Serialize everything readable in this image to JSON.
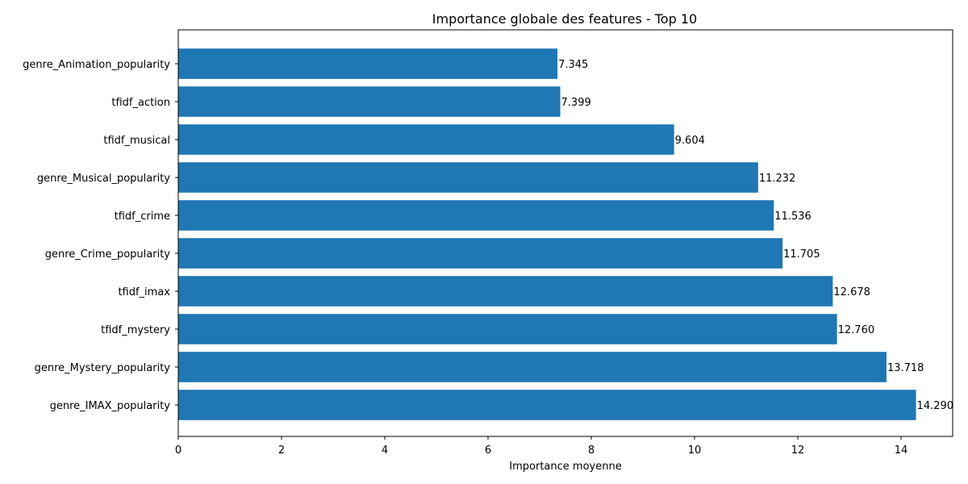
{
  "chart_data": {
    "type": "bar",
    "orientation": "horizontal",
    "title": "Importance globale des features - Top 10",
    "xlabel": "Importance moyenne",
    "ylabel": "",
    "xlim": [
      0,
      15
    ],
    "xticks": [
      0,
      2,
      4,
      6,
      8,
      10,
      12,
      14
    ],
    "grid": false,
    "bar_color": "#1f77b4",
    "categories": [
      "genre_Animation_popularity",
      "tfidf_action",
      "tfidf_musical",
      "genre_Musical_popularity",
      "tfidf_crime",
      "genre_Crime_popularity",
      "tfidf_imax",
      "tfidf_mystery",
      "genre_Mystery_popularity",
      "genre_IMAX_popularity"
    ],
    "values": [
      7.345,
      7.399,
      9.604,
      11.232,
      11.536,
      11.705,
      12.678,
      12.76,
      13.718,
      14.29
    ],
    "data_labels": [
      "7.345",
      "7.399",
      "9.604",
      "11.232",
      "11.536",
      "11.705",
      "12.678",
      "12.760",
      "13.718",
      "14.290"
    ]
  }
}
